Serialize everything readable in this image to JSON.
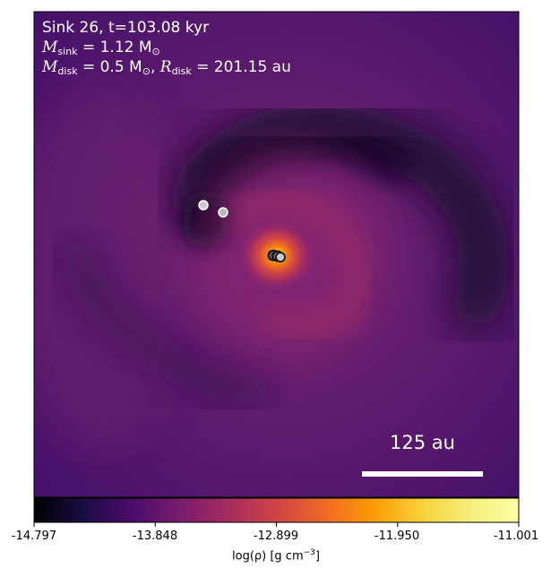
{
  "panel": {
    "line1": "Sink 26, t=103.08 kyr",
    "msink_symbol": "M",
    "msink_sub": "sink",
    "msink_value": " = 1.12 M",
    "msink_unit_sub": "⊙",
    "mdisk_symbol": "M",
    "mdisk_sub": "disk",
    "mdisk_value": " = 0.5 M",
    "mdisk_unit_sub": "⊙",
    "rdisk_prefix": ", ",
    "rdisk_symbol": "R",
    "rdisk_sub": "disk",
    "rdisk_value": " = 201.15 au"
  },
  "scalebar": {
    "label": "125 au"
  },
  "colorbar": {
    "colormap": "inferno",
    "ticks": [
      "-14.797",
      "-13.848",
      "-12.899",
      "-11.950",
      "-11.001"
    ],
    "label_prefix": "log(ρ) [g cm",
    "label_exp": "−3",
    "label_suffix": "]"
  },
  "colors": {
    "background_purple": "#5e1a6e",
    "void_black": "#0a0618",
    "core_yellow": "#fcffa4"
  }
}
